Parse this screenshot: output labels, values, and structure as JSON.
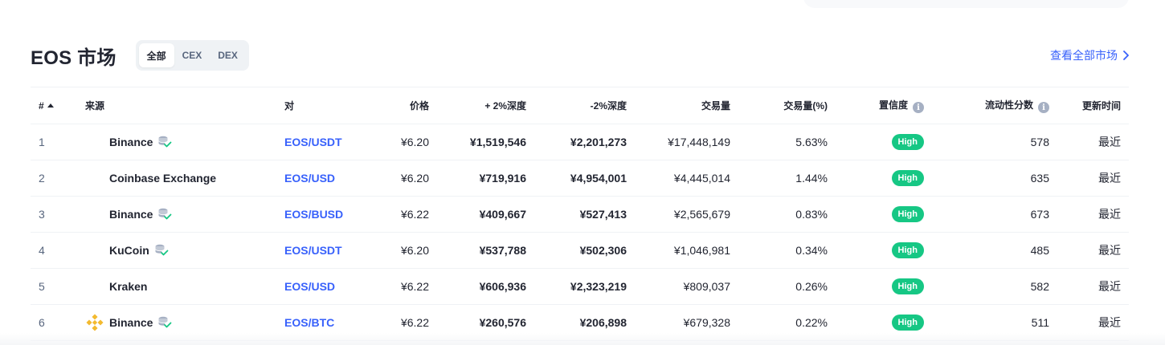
{
  "header": {
    "title": "EOS 市场",
    "tabs": [
      {
        "label": "全部",
        "active": true
      },
      {
        "label": "CEX",
        "active": false
      },
      {
        "label": "DEX",
        "active": false
      }
    ],
    "view_all_label": "查看全部市场"
  },
  "table": {
    "columns": {
      "rank": "#",
      "source": "来源",
      "pair": "对",
      "price": "价格",
      "depth_plus": "+ 2%深度",
      "depth_minus": "-2%深度",
      "volume": "交易量",
      "volume_pct": "交易量(%)",
      "confidence": "置信度",
      "liquidity": "流动性分数",
      "updated": "更新时间"
    },
    "rows": [
      {
        "rank": "1",
        "source": "Binance",
        "verified": true,
        "logo": false,
        "pair": "EOS/USDT",
        "price": "¥6.20",
        "depth_plus": "¥1,519,546",
        "depth_minus": "¥2,201,273",
        "volume": "¥17,448,149",
        "volume_pct": "5.63%",
        "confidence": "High",
        "liquidity": "578",
        "updated": "最近"
      },
      {
        "rank": "2",
        "source": "Coinbase Exchange",
        "verified": false,
        "logo": false,
        "pair": "EOS/USD",
        "price": "¥6.20",
        "depth_plus": "¥719,916",
        "depth_minus": "¥4,954,001",
        "volume": "¥4,445,014",
        "volume_pct": "1.44%",
        "confidence": "High",
        "liquidity": "635",
        "updated": "最近"
      },
      {
        "rank": "3",
        "source": "Binance",
        "verified": true,
        "logo": false,
        "pair": "EOS/BUSD",
        "price": "¥6.22",
        "depth_plus": "¥409,667",
        "depth_minus": "¥527,413",
        "volume": "¥2,565,679",
        "volume_pct": "0.83%",
        "confidence": "High",
        "liquidity": "673",
        "updated": "最近"
      },
      {
        "rank": "4",
        "source": "KuCoin",
        "verified": true,
        "logo": false,
        "pair": "EOS/USDT",
        "price": "¥6.20",
        "depth_plus": "¥537,788",
        "depth_minus": "¥502,306",
        "volume": "¥1,046,981",
        "volume_pct": "0.34%",
        "confidence": "High",
        "liquidity": "485",
        "updated": "最近"
      },
      {
        "rank": "5",
        "source": "Kraken",
        "verified": false,
        "logo": false,
        "pair": "EOS/USD",
        "price": "¥6.22",
        "depth_plus": "¥606,936",
        "depth_minus": "¥2,323,219",
        "volume": "¥809,037",
        "volume_pct": "0.26%",
        "confidence": "High",
        "liquidity": "582",
        "updated": "最近"
      },
      {
        "rank": "6",
        "source": "Binance",
        "verified": true,
        "logo": true,
        "pair": "EOS/BTC",
        "price": "¥6.22",
        "depth_plus": "¥260,576",
        "depth_minus": "¥206,898",
        "volume": "¥679,328",
        "volume_pct": "0.22%",
        "confidence": "High",
        "liquidity": "511",
        "updated": "最近"
      }
    ]
  },
  "icons": {
    "verified": "database-check-icon",
    "info": "info-icon",
    "chevron": "chevron-right-icon",
    "logo": "binance-logo-icon"
  },
  "colors": {
    "accent": "#3861fb",
    "high_badge": "#16c784",
    "binance_logo": "#f3ba2f"
  }
}
